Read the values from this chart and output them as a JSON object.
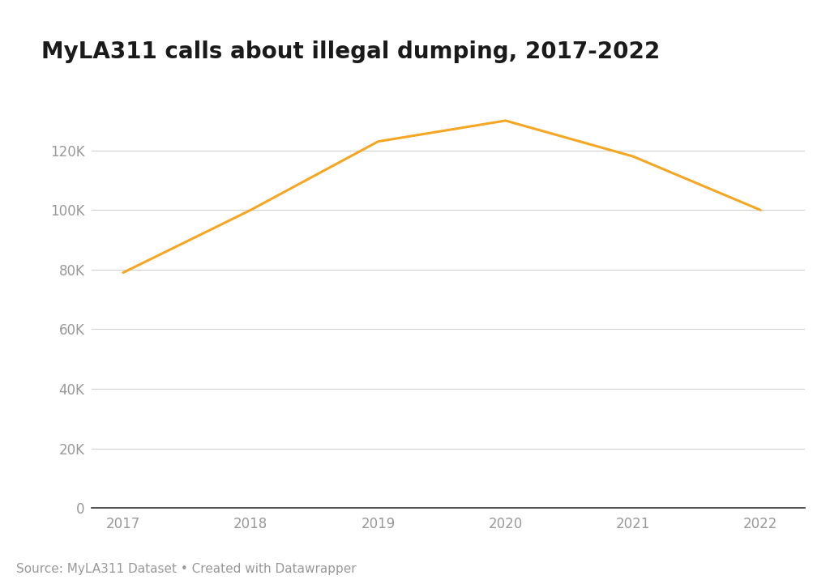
{
  "title": "MyLA311 calls about illegal dumping, 2017-2022",
  "source_text": "Source: MyLA311 Dataset • Created with Datawrapper",
  "years": [
    2017,
    2018,
    2019,
    2020,
    2021,
    2022
  ],
  "values": [
    79000,
    100000,
    123000,
    130000,
    118000,
    100000
  ],
  "line_color": "#f5a623",
  "line_width": 2.2,
  "background_color": "#ffffff",
  "grid_color": "#d0d0d0",
  "ylabel_color": "#999999",
  "xlabel_color": "#999999",
  "title_color": "#1a1a1a",
  "source_color": "#999999",
  "ylim": [
    0,
    145000
  ],
  "yticks": [
    0,
    20000,
    40000,
    60000,
    80000,
    100000,
    120000
  ],
  "xticks": [
    2017,
    2018,
    2019,
    2020,
    2021,
    2022
  ],
  "title_fontsize": 20,
  "tick_fontsize": 12,
  "source_fontsize": 11,
  "xlim_left": 2016.75,
  "xlim_right": 2022.35
}
